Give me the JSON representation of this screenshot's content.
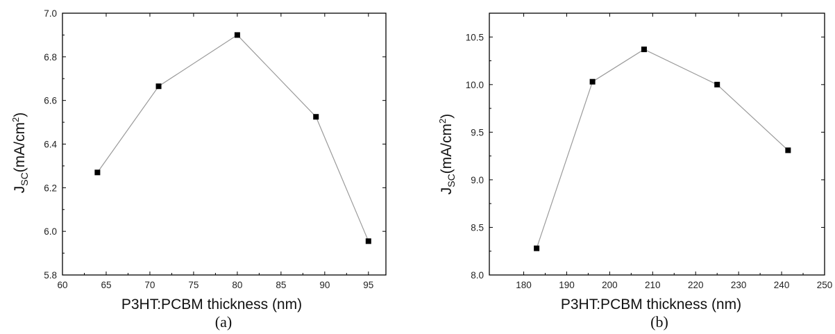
{
  "chart_data": [
    {
      "type": "line",
      "panel_label": "(a)",
      "xlabel": "P3HT:PCBM thickness (nm)",
      "ylabel": {
        "main": "J",
        "sub": "SC",
        "unit_pre": "(mA/cm",
        "sup": "2",
        "unit_post": ")"
      },
      "xlim": [
        60,
        97
      ],
      "ylim": [
        5.8,
        7.0
      ],
      "xticks": [
        60,
        65,
        70,
        75,
        80,
        85,
        90,
        95
      ],
      "xtick_labels": [
        "60",
        "65",
        "70",
        "75",
        "80",
        "85",
        "90",
        "95"
      ],
      "yticks": [
        5.8,
        6.0,
        6.2,
        6.4,
        6.6,
        6.8,
        7.0
      ],
      "ytick_labels": [
        "5.8",
        "6.0",
        "6.2",
        "6.4",
        "6.6",
        "6.8",
        "7.0"
      ],
      "grid": false,
      "x": [
        64,
        71,
        80,
        89,
        95
      ],
      "y": [
        6.27,
        6.665,
        6.9,
        6.525,
        5.955
      ],
      "marker": "square",
      "line_color": "#9a9a9a",
      "marker_color": "#000000"
    },
    {
      "type": "line",
      "panel_label": "(b)",
      "xlabel": "P3HT:PCBM thickness (nm)",
      "ylabel": {
        "main": "J",
        "sub": "SC",
        "unit_pre": "(mA/cm",
        "sup": "2",
        "unit_post": ")"
      },
      "xlim": [
        172,
        250
      ],
      "ylim": [
        8.0,
        10.75
      ],
      "xticks": [
        180,
        190,
        200,
        210,
        220,
        230,
        240,
        250
      ],
      "xtick_labels": [
        "180",
        "190",
        "200",
        "210",
        "220",
        "230",
        "240",
        "250"
      ],
      "yticks": [
        8.0,
        8.5,
        9.0,
        9.5,
        10.0,
        10.5
      ],
      "ytick_labels": [
        "8.0",
        "8.5",
        "9.0",
        "9.5",
        "10.0",
        "10.5"
      ],
      "grid": false,
      "x": [
        183,
        196,
        208,
        225,
        241.5
      ],
      "y": [
        8.28,
        10.03,
        10.37,
        10.0,
        9.31
      ],
      "marker": "square",
      "line_color": "#9a9a9a",
      "marker_color": "#000000"
    }
  ]
}
